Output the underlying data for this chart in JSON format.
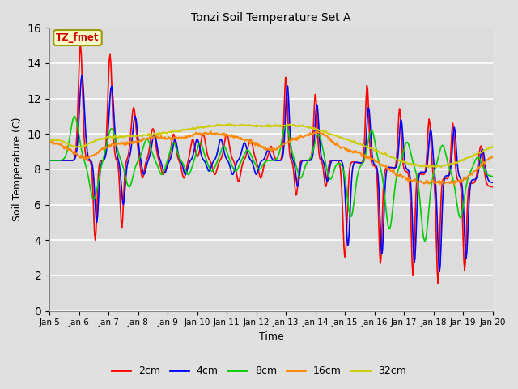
{
  "title": "Tonzi Soil Temperature Set A",
  "xlabel": "Time",
  "ylabel": "Soil Temperature (C)",
  "annotation": "TZ_fmet",
  "ylim": [
    0,
    16
  ],
  "yticks": [
    0,
    2,
    4,
    6,
    8,
    10,
    12,
    14,
    16
  ],
  "outer_bg": "#e0e0e0",
  "plot_bg": "#dcdcdc",
  "line_colors": {
    "2cm": "#ff0000",
    "4cm": "#0000ff",
    "8cm": "#00cc00",
    "16cm": "#ff8800",
    "32cm": "#cccc00"
  },
  "xtick_labels": [
    "Jan 5",
    "Jan 6",
    "Jan 7",
    "Jan 8",
    "Jan 9",
    "Jan 10",
    "Jan 11",
    "Jan 12",
    "Jan 13",
    "Jan 14",
    "Jan 15",
    "Jan 16",
    "Jan 17",
    "Jan 18",
    "Jan 19",
    "Jan 20"
  ],
  "n_points": 600
}
